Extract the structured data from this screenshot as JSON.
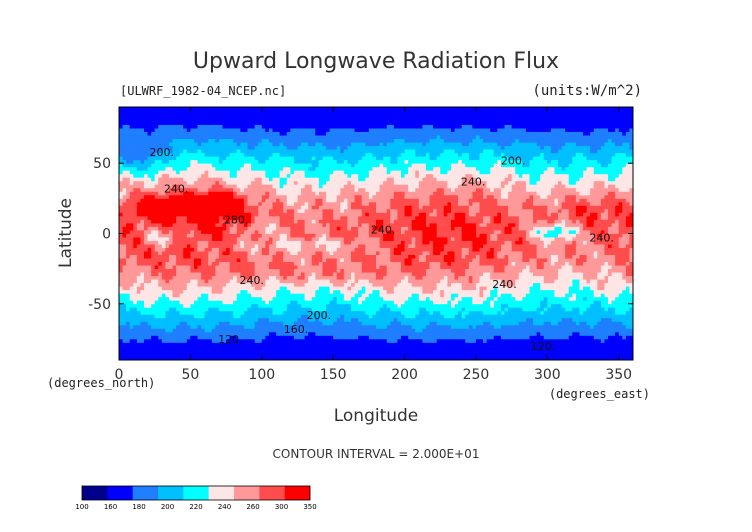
{
  "title": "Upward Longwave Radiation Flux",
  "file_label": "[ULWRF_1982-04_NCEP.nc]",
  "units_label": "(units:W/m^2)",
  "contour_interval": "CONTOUR INTERVAL = 2.000E+01",
  "chart_data": {
    "type": "heatmap",
    "title": "Upward Longwave Radiation Flux",
    "xlabel": "Longitude",
    "ylabel": "Latitude",
    "x_units": "(degrees_east)",
    "y_units": "(degrees_north)",
    "xlim": [
      0,
      360
    ],
    "ylim": [
      -90,
      90
    ],
    "x_ticks": [
      0,
      50,
      100,
      150,
      200,
      250,
      300,
      350
    ],
    "y_ticks": [
      -50,
      0,
      50
    ],
    "contour_labels": [
      {
        "text": "200.",
        "x": 30,
        "y": 58
      },
      {
        "text": "240.",
        "x": 40,
        "y": 32
      },
      {
        "text": "280.",
        "x": 82,
        "y": 10
      },
      {
        "text": "240.",
        "x": 185,
        "y": 3
      },
      {
        "text": "240.",
        "x": 248,
        "y": 37
      },
      {
        "text": "200.",
        "x": 276,
        "y": 52
      },
      {
        "text": "240.",
        "x": 338,
        "y": -3
      },
      {
        "text": "240.",
        "x": 93,
        "y": -33
      },
      {
        "text": "240.",
        "x": 270,
        "y": -36
      },
      {
        "text": "200.",
        "x": 140,
        "y": -58
      },
      {
        "text": "160.",
        "x": 124,
        "y": -68
      },
      {
        "text": "120.",
        "x": 78,
        "y": -75
      },
      {
        "text": "120.",
        "x": 297,
        "y": -80
      }
    ],
    "colorbar": {
      "levels": [
        "100",
        "160",
        "180",
        "200",
        "220",
        "240",
        "260",
        "300",
        "350"
      ],
      "colors": [
        "#00008b",
        "#0000ff",
        "#1e7fff",
        "#00bfff",
        "#00ffff",
        "#ffe6e6",
        "#ff9999",
        "#ff4d4d",
        "#ff0000"
      ]
    }
  }
}
